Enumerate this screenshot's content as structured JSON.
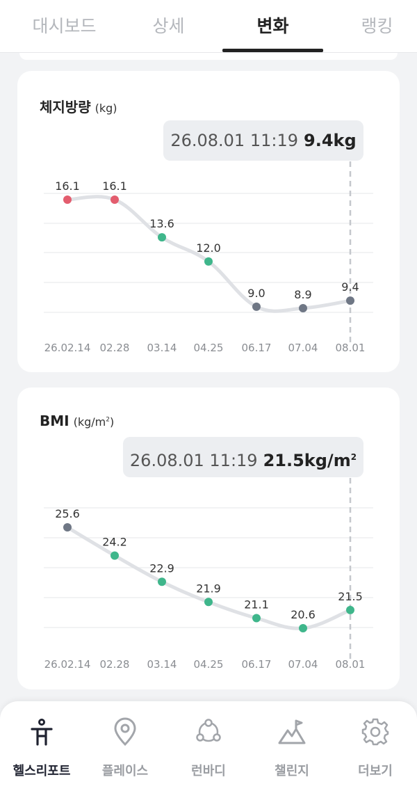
{
  "tabs": [
    {
      "label": "대시보드",
      "active": false
    },
    {
      "label": "상세",
      "active": false
    },
    {
      "label": "변화",
      "active": true
    },
    {
      "label": "랭킹",
      "active": false
    }
  ],
  "cards": [
    {
      "title": "체지방량",
      "unit": "(kg)",
      "tooltip": {
        "datetime": "26.08.01 11:19",
        "value": "9.4kg"
      },
      "chart_data": {
        "type": "line",
        "x": [
          "26.02.14",
          "02.28",
          "03.14",
          "04.25",
          "06.17",
          "07.04",
          "08.01"
        ],
        "values": [
          16.1,
          16.1,
          13.6,
          12.0,
          9.0,
          8.9,
          9.4
        ],
        "value_labels": [
          "16.1",
          "16.1",
          "13.6",
          "12.0",
          "9.0",
          "8.9",
          "9.4"
        ],
        "point_colors": [
          "#e35d6e",
          "#e35d6e",
          "#3fb68b",
          "#3fb68b",
          "#6f7785",
          "#6f7785",
          "#6f7785"
        ],
        "selected_index": 6,
        "grid": true
      }
    },
    {
      "title": "BMI",
      "unit": "(kg/m",
      "unit_sup": "2",
      "unit_close": ")",
      "tooltip": {
        "datetime": "26.08.01 11:19",
        "value": "21.5kg/m",
        "value_sup": "2"
      },
      "chart_data": {
        "type": "line",
        "x": [
          "26.02.14",
          "02.28",
          "03.14",
          "04.25",
          "06.17",
          "07.04",
          "08.01"
        ],
        "values": [
          25.6,
          24.2,
          22.9,
          21.9,
          21.1,
          20.6,
          21.5
        ],
        "value_labels": [
          "25.6",
          "24.2",
          "22.9",
          "21.9",
          "21.1",
          "20.6",
          "21.5"
        ],
        "point_colors": [
          "#6f7785",
          "#3fb68b",
          "#3fb68b",
          "#3fb68b",
          "#3fb68b",
          "#3fb68b",
          "#3fb68b"
        ],
        "selected_index": 6,
        "grid": true
      }
    }
  ],
  "colors": {
    "line": "#dfe1e5",
    "grid": "#eeeff1",
    "guide": "#c4c7cc",
    "accent": "#1f2230"
  },
  "bottom_nav": [
    {
      "label": "헬스리포트",
      "icon": "person-icon",
      "active": true
    },
    {
      "label": "플레이스",
      "icon": "location-pin-icon",
      "active": false
    },
    {
      "label": "런바디",
      "icon": "people-network-icon",
      "active": false
    },
    {
      "label": "챌린지",
      "icon": "mountain-flag-icon",
      "active": false
    },
    {
      "label": "더보기",
      "icon": "gear-icon",
      "active": false
    }
  ]
}
